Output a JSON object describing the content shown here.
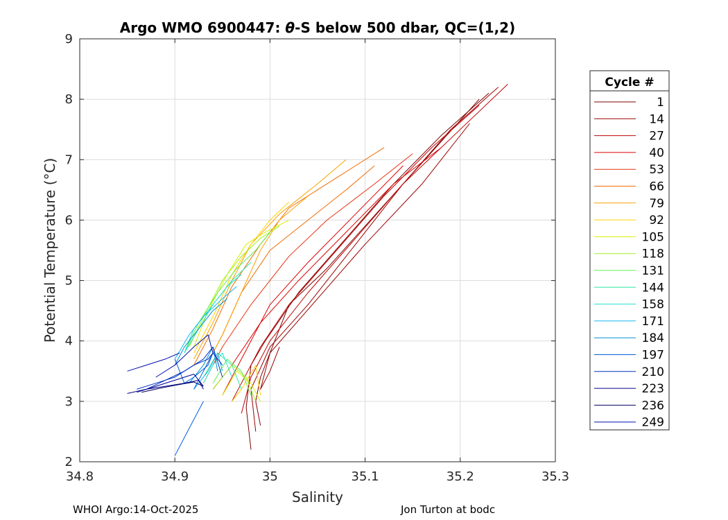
{
  "chart_data": {
    "type": "line",
    "title_prefix": "Argo WMO 6900447: ",
    "title_theta": "θ",
    "title_suffix": "-S below 500 dbar,  QC=(1,2)",
    "xlabel": "Salinity",
    "ylabel": "Potential Temperature (°C)",
    "xlim": [
      34.8,
      35.3
    ],
    "ylim": [
      2,
      9
    ],
    "xticks": [
      34.8,
      34.9,
      35,
      35.1,
      35.2,
      35.3
    ],
    "xtick_labels": [
      "34.8",
      "34.9",
      "35",
      "35.1",
      "35.2",
      "35.3"
    ],
    "yticks": [
      2,
      3,
      4,
      5,
      6,
      7,
      8,
      9
    ],
    "ytick_labels": [
      "2",
      "3",
      "4",
      "5",
      "6",
      "7",
      "8",
      "9"
    ],
    "grid": true,
    "legend": {
      "title": "Cycle #",
      "placement": "outside-right",
      "entries": [
        {
          "label": "1",
          "color": "#7f0000"
        },
        {
          "label": "14",
          "color": "#9b0000"
        },
        {
          "label": "27",
          "color": "#c00000"
        },
        {
          "label": "40",
          "color": "#dd0000"
        },
        {
          "label": "53",
          "color": "#e83010"
        },
        {
          "label": "66",
          "color": "#f06a00"
        },
        {
          "label": "79",
          "color": "#f8a000"
        },
        {
          "label": "92",
          "color": "#ffd000"
        },
        {
          "label": "105",
          "color": "#d8f000"
        },
        {
          "label": "118",
          "color": "#a0f020"
        },
        {
          "label": "131",
          "color": "#5ef050"
        },
        {
          "label": "144",
          "color": "#30e8a0"
        },
        {
          "label": "158",
          "color": "#20e0d0"
        },
        {
          "label": "171",
          "color": "#10b8f0"
        },
        {
          "label": "184",
          "color": "#0090d0"
        },
        {
          "label": "197",
          "color": "#0060e0"
        },
        {
          "label": "210",
          "color": "#0030c0"
        },
        {
          "label": "223",
          "color": "#000090"
        },
        {
          "label": "236",
          "color": "#000060"
        },
        {
          "label": "249",
          "color": "#0010b0"
        }
      ]
    },
    "series": [
      {
        "color": "#7f0000",
        "x": [
          34.99,
          34.985,
          34.99,
          35.0,
          35.01,
          35.02,
          35.06,
          35.1,
          35.14,
          35.18,
          35.22
        ],
        "y": [
          2.6,
          3.0,
          3.4,
          3.8,
          4.2,
          4.6,
          5.2,
          5.9,
          6.6,
          7.3,
          8.0
        ]
      },
      {
        "color": "#7f0000",
        "x": [
          34.98,
          34.975,
          34.98,
          34.995,
          35.03,
          35.08,
          35.13,
          35.18,
          35.23
        ],
        "y": [
          2.2,
          2.9,
          3.6,
          4.0,
          4.8,
          5.7,
          6.6,
          7.4,
          8.1
        ]
      },
      {
        "color": "#9b0000",
        "x": [
          34.985,
          34.98,
          35.0,
          35.04,
          35.09,
          35.14,
          35.19,
          35.24
        ],
        "y": [
          2.5,
          3.2,
          3.9,
          4.6,
          5.6,
          6.6,
          7.5,
          8.2
        ]
      },
      {
        "color": "#9b0000",
        "x": [
          35.01,
          35.0,
          34.99,
          35.0,
          35.05,
          35.1,
          35.16,
          35.21
        ],
        "y": [
          3.9,
          3.5,
          3.2,
          3.8,
          4.7,
          5.6,
          6.6,
          7.6
        ]
      },
      {
        "color": "#c00000",
        "x": [
          34.97,
          34.98,
          35.0,
          35.04,
          35.09,
          35.14,
          35.2,
          35.25
        ],
        "y": [
          2.8,
          3.4,
          4.0,
          4.8,
          5.7,
          6.6,
          7.5,
          8.25
        ]
      },
      {
        "color": "#c00000",
        "x": [
          34.96,
          34.97,
          34.99,
          35.02,
          35.07,
          35.12,
          35.17,
          35.22
        ],
        "y": [
          3.0,
          3.3,
          3.9,
          4.6,
          5.5,
          6.4,
          7.2,
          7.9
        ]
      },
      {
        "color": "#dd0000",
        "x": [
          34.94,
          34.96,
          34.99,
          35.03,
          35.08,
          35.13,
          35.18
        ],
        "y": [
          3.2,
          3.6,
          4.3,
          5.0,
          5.8,
          6.6,
          7.2
        ]
      },
      {
        "color": "#dd0000",
        "x": [
          34.95,
          34.97,
          35.0,
          35.04,
          35.09,
          35.14
        ],
        "y": [
          3.1,
          3.7,
          4.6,
          5.3,
          6.1,
          6.9
        ]
      },
      {
        "color": "#e83010",
        "x": [
          34.93,
          34.95,
          34.98,
          35.02,
          35.06,
          35.11,
          35.15
        ],
        "y": [
          3.3,
          3.9,
          4.6,
          5.4,
          6.0,
          6.6,
          7.1
        ]
      },
      {
        "color": "#f06a00",
        "x": [
          34.93,
          34.95,
          34.97,
          35.0,
          35.04,
          35.08,
          35.11
        ],
        "y": [
          3.5,
          4.1,
          4.8,
          5.5,
          6.0,
          6.5,
          6.9
        ]
      },
      {
        "color": "#f06a00",
        "x": [
          34.92,
          34.94,
          34.96,
          34.99,
          35.02,
          35.06,
          35.12
        ],
        "y": [
          3.6,
          4.2,
          4.9,
          5.6,
          6.2,
          6.6,
          7.2
        ]
      },
      {
        "color": "#f8a000",
        "x": [
          34.92,
          34.94,
          34.96,
          34.98,
          35.01,
          35.05,
          35.08
        ],
        "y": [
          3.7,
          4.3,
          5.0,
          5.6,
          6.1,
          6.6,
          7.0
        ]
      },
      {
        "color": "#f8a000",
        "x": [
          34.93,
          34.95,
          34.97,
          34.99,
          35.01,
          35.04
        ],
        "y": [
          3.5,
          4.1,
          4.8,
          5.5,
          6.0,
          6.4
        ]
      },
      {
        "color": "#ffd000",
        "x": [
          34.96,
          34.97,
          34.985,
          34.99
        ],
        "y": [
          3.0,
          3.2,
          3.6,
          3.1
        ]
      },
      {
        "color": "#ffd000",
        "x": [
          34.92,
          34.94,
          34.96,
          34.98,
          35.0,
          35.02
        ],
        "y": [
          3.8,
          4.4,
          5.1,
          5.6,
          6.0,
          6.3
        ]
      },
      {
        "color": "#d8f000",
        "x": [
          34.95,
          34.965,
          34.98,
          34.99
        ],
        "y": [
          3.1,
          3.5,
          3.3,
          3.0
        ]
      },
      {
        "color": "#d8f000",
        "x": [
          34.92,
          34.935,
          34.955,
          34.975,
          34.995,
          35.02
        ],
        "y": [
          3.9,
          4.5,
          5.1,
          5.6,
          5.8,
          6.0
        ]
      },
      {
        "color": "#a0f020",
        "x": [
          34.94,
          34.96,
          34.975,
          34.985
        ],
        "y": [
          3.2,
          3.6,
          3.4,
          3.0
        ]
      },
      {
        "color": "#a0f020",
        "x": [
          34.915,
          34.93,
          34.95,
          34.97,
          34.99,
          35.01
        ],
        "y": [
          3.9,
          4.4,
          5.0,
          5.4,
          5.7,
          5.9
        ]
      },
      {
        "color": "#5ef050",
        "x": [
          34.94,
          34.955,
          34.97,
          34.98
        ],
        "y": [
          3.3,
          3.7,
          3.5,
          3.1
        ]
      },
      {
        "color": "#5ef050",
        "x": [
          34.91,
          34.925,
          34.945,
          34.965,
          34.985,
          35.0
        ],
        "y": [
          3.8,
          4.3,
          4.8,
          5.2,
          5.5,
          5.8
        ]
      },
      {
        "color": "#30e8a0",
        "x": [
          34.93,
          34.945,
          34.96,
          34.97
        ],
        "y": [
          3.4,
          3.8,
          3.6,
          3.2
        ]
      },
      {
        "color": "#30e8a0",
        "x": [
          34.91,
          34.925,
          34.94,
          34.96,
          34.98
        ],
        "y": [
          3.8,
          4.2,
          4.6,
          5.0,
          5.3
        ]
      },
      {
        "color": "#20e0d0",
        "x": [
          34.91,
          34.92,
          34.935,
          34.955,
          34.97
        ],
        "y": [
          3.8,
          4.2,
          4.5,
          4.9,
          5.1
        ]
      },
      {
        "color": "#20e0d0",
        "x": [
          34.93,
          34.94,
          34.95,
          34.96
        ],
        "y": [
          3.3,
          3.6,
          3.8,
          3.4
        ]
      },
      {
        "color": "#10b8f0",
        "x": [
          34.9,
          34.915,
          34.93,
          34.95,
          34.965
        ],
        "y": [
          3.7,
          4.1,
          4.4,
          4.7,
          4.9
        ]
      },
      {
        "color": "#10b8f0",
        "x": [
          34.92,
          34.935,
          34.945,
          34.95
        ],
        "y": [
          3.2,
          3.5,
          3.8,
          3.5
        ]
      },
      {
        "color": "#0090d0",
        "x": [
          34.9,
          34.91,
          34.925,
          34.94,
          34.955
        ],
        "y": [
          3.6,
          3.9,
          4.2,
          4.5,
          4.7
        ]
      },
      {
        "color": "#0090d0",
        "x": [
          34.915,
          34.93,
          34.94,
          34.945
        ],
        "y": [
          3.3,
          3.6,
          3.9,
          3.5
        ]
      },
      {
        "color": "#0060e0",
        "x": [
          34.92,
          34.93,
          34.94,
          34.935,
          34.92,
          34.91,
          34.9
        ],
        "y": [
          3.2,
          3.5,
          3.8,
          3.6,
          3.4,
          3.3,
          3.7
        ]
      },
      {
        "color": "#0060e0",
        "x": [
          34.93,
          34.92,
          34.91,
          34.9
        ],
        "y": [
          3.0,
          2.7,
          2.4,
          2.1
        ]
      },
      {
        "color": "#0030c0",
        "x": [
          34.86,
          34.88,
          34.9,
          34.92,
          34.935,
          34.94,
          34.95
        ],
        "y": [
          3.2,
          3.3,
          3.4,
          3.6,
          3.7,
          3.8,
          3.6
        ]
      },
      {
        "color": "#0030c0",
        "x": [
          34.87,
          34.89,
          34.91,
          34.93,
          34.94,
          34.95
        ],
        "y": [
          3.2,
          3.35,
          3.5,
          3.7,
          3.9,
          3.4
        ]
      },
      {
        "color": "#000090",
        "x": [
          34.85,
          34.87,
          34.89,
          34.91,
          34.925,
          34.93
        ],
        "y": [
          3.13,
          3.2,
          3.25,
          3.3,
          3.35,
          3.2
        ]
      },
      {
        "color": "#000090",
        "x": [
          34.86,
          34.88,
          34.9,
          34.92,
          34.93
        ],
        "y": [
          3.15,
          3.25,
          3.35,
          3.45,
          3.25
        ]
      },
      {
        "color": "#000060",
        "x": [
          34.865,
          34.885,
          34.905,
          34.92,
          34.93
        ],
        "y": [
          3.15,
          3.22,
          3.28,
          3.32,
          3.25
        ]
      },
      {
        "color": "#0010b0",
        "x": [
          34.85,
          34.87,
          34.89,
          34.905
        ],
        "y": [
          3.5,
          3.6,
          3.7,
          3.8
        ]
      },
      {
        "color": "#0010b0",
        "x": [
          34.88,
          34.9,
          34.92,
          34.935,
          34.94
        ],
        "y": [
          3.4,
          3.6,
          3.9,
          4.1,
          3.8
        ]
      }
    ]
  },
  "footer": {
    "left": "WHOI Argo:14-Oct-2025",
    "right": "Jon Turton at bodc"
  }
}
